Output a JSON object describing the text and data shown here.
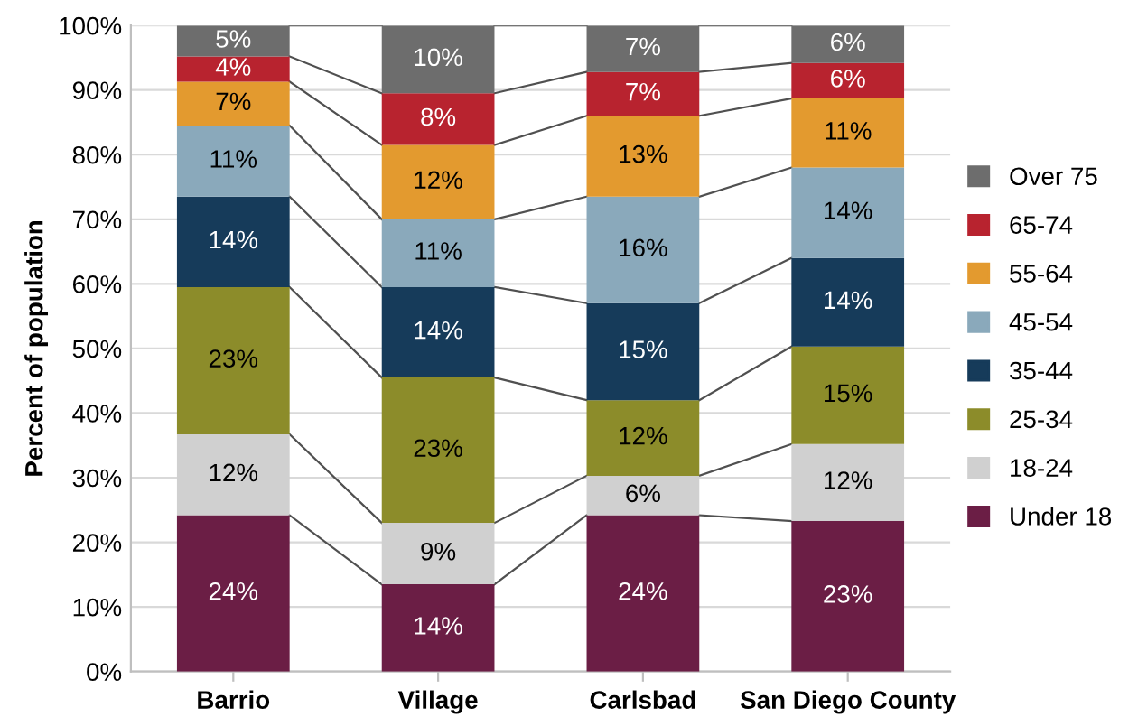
{
  "chart_data": {
    "type": "bar",
    "stacked": true,
    "ylabel": "Percent of population",
    "categories": [
      "Barrio",
      "Village",
      "Carlsbad",
      "San Diego County"
    ],
    "series": [
      {
        "name": "Under 18",
        "color": "#6b1e45",
        "values": [
          24.2,
          13.5,
          24.2,
          23.3
        ],
        "value_labels": [
          "24%",
          "14%",
          "24%",
          "23%"
        ]
      },
      {
        "name": "18-24",
        "color": "#d0d0d0",
        "values": [
          12.5,
          9.5,
          6.1,
          11.9
        ],
        "value_labels": [
          "12%",
          "9%",
          "6%",
          "12%"
        ]
      },
      {
        "name": "25-34",
        "color": "#8c8c2a",
        "values": [
          22.8,
          22.5,
          11.7,
          15.1
        ],
        "value_labels": [
          "23%",
          "23%",
          "12%",
          "15%"
        ]
      },
      {
        "name": "35-44",
        "color": "#163b5a",
        "values": [
          14.0,
          14.0,
          15.0,
          13.7
        ],
        "value_labels": [
          "14%",
          "14%",
          "15%",
          "14%"
        ]
      },
      {
        "name": "45-54",
        "color": "#8aa9bb",
        "values": [
          11.0,
          10.5,
          16.5,
          14.0
        ],
        "value_labels": [
          "11%",
          "11%",
          "16%",
          "14%"
        ]
      },
      {
        "name": "55-64",
        "color": "#e39a2f",
        "values": [
          6.8,
          11.5,
          12.5,
          10.7
        ],
        "value_labels": [
          "7%",
          "12%",
          "13%",
          "11%"
        ]
      },
      {
        "name": "65-74",
        "color": "#b8232f",
        "values": [
          3.9,
          8.0,
          6.8,
          5.5
        ],
        "value_labels": [
          "4%",
          "8%",
          "7%",
          "6%"
        ]
      },
      {
        "name": "Over 75",
        "color": "#6d6d6d",
        "values": [
          4.8,
          10.5,
          7.2,
          5.8
        ],
        "value_labels": [
          "5%",
          "10%",
          "7%",
          "6%"
        ]
      }
    ],
    "ylim": [
      0,
      100
    ],
    "yticks": [
      {
        "value": 0,
        "label": "0%"
      },
      {
        "value": 10,
        "label": "10%"
      },
      {
        "value": 20,
        "label": "20%"
      },
      {
        "value": 30,
        "label": "30%"
      },
      {
        "value": 40,
        "label": "40%"
      },
      {
        "value": 50,
        "label": "50%"
      },
      {
        "value": 60,
        "label": "60%"
      },
      {
        "value": 70,
        "label": "70%"
      },
      {
        "value": 80,
        "label": "80%"
      },
      {
        "value": 90,
        "label": "90%"
      },
      {
        "value": 100,
        "label": "100%"
      }
    ],
    "grid": "y",
    "legend": "right"
  }
}
